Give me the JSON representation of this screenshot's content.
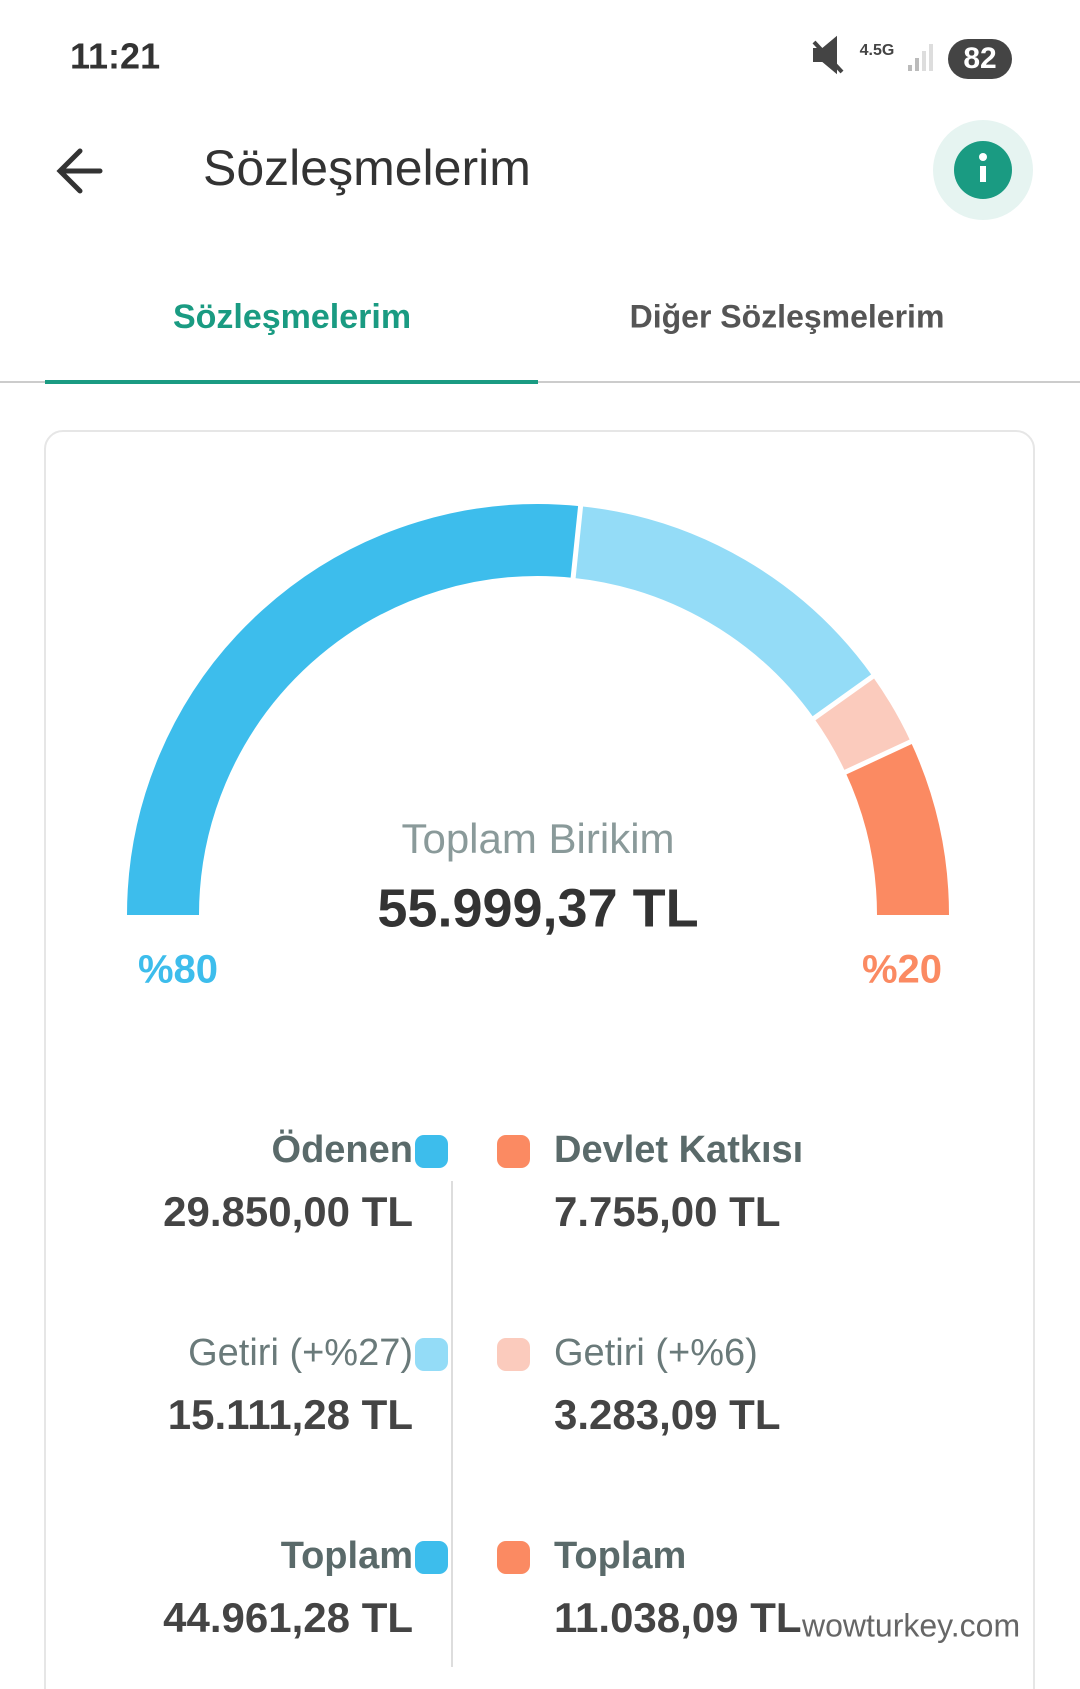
{
  "status_bar": {
    "time": "11:21",
    "network": "4.5G",
    "battery": "82"
  },
  "header": {
    "title": "Sözleşmelerim"
  },
  "tabs": [
    "Sözleşmelerim",
    "Diğer Sözleşmelerim"
  ],
  "chart_data": {
    "type": "gauge",
    "title": "Toplam Birikim",
    "total": "55.999,37 TL",
    "categories": [
      "Ödenen",
      "Getiri (+%27)",
      "Devlet Katkısı",
      "Getiri (+%6)"
    ],
    "values": [
      29850,
      15111.28,
      7755,
      3283.09
    ],
    "value_labels": [
      "29.850,00 TL",
      "15.111,28 TL",
      "7.755,00 TL",
      "3.283,09 TL"
    ],
    "colors": [
      "#3dbdec",
      "#94dcf7",
      "#fb8a62",
      "#fbcbbd"
    ],
    "left_share": "%80",
    "right_share": "%20"
  },
  "totals": [
    {
      "label": "Toplam",
      "value": "44.961,28 TL"
    },
    {
      "label": "Toplam",
      "value": "11.038,09 TL"
    }
  ],
  "watermark": "wowturkey.com"
}
